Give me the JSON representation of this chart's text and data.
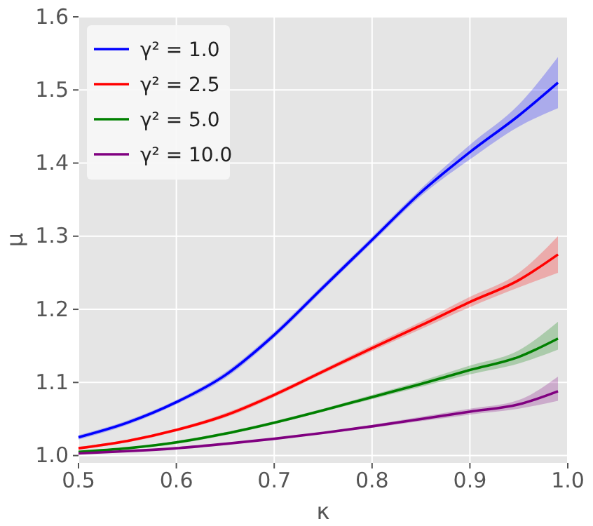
{
  "chart_data": {
    "type": "line",
    "xlabel": "κ",
    "ylabel": "μ",
    "xlim": [
      0.5,
      1.0
    ],
    "ylim": [
      0.99,
      1.6
    ],
    "xticks": [
      0.5,
      0.6,
      0.7,
      0.8,
      0.9,
      {
        "value": 1.0,
        "label": "1.0"
      }
    ],
    "yticks": [
      {
        "value": 1.0,
        "label": "1.0"
      },
      1.1,
      1.2,
      1.3,
      1.4,
      1.5,
      1.6
    ],
    "grid": true,
    "legend": "top left",
    "line_style": "solid",
    "x": [
      0.5,
      0.55,
      0.6,
      0.65,
      0.7,
      0.75,
      0.8,
      0.85,
      0.9,
      0.95,
      0.99
    ],
    "series": [
      {
        "name": "γ² = 1.0",
        "color": "#0000ff",
        "values": [
          1.025,
          1.045,
          1.073,
          1.11,
          1.165,
          1.23,
          1.295,
          1.36,
          1.415,
          1.465,
          1.51
        ],
        "lower": [
          1.022,
          1.042,
          1.07,
          1.106,
          1.161,
          1.226,
          1.291,
          1.355,
          1.405,
          1.45,
          1.475
        ],
        "upper": [
          1.028,
          1.048,
          1.076,
          1.114,
          1.169,
          1.234,
          1.299,
          1.365,
          1.425,
          1.48,
          1.545
        ]
      },
      {
        "name": "γ² = 2.5",
        "color": "#ff0000",
        "values": [
          1.01,
          1.02,
          1.035,
          1.055,
          1.083,
          1.115,
          1.147,
          1.178,
          1.21,
          1.24,
          1.275
        ],
        "lower": [
          1.008,
          1.018,
          1.033,
          1.052,
          1.08,
          1.112,
          1.143,
          1.173,
          1.203,
          1.23,
          1.25
        ],
        "upper": [
          1.012,
          1.022,
          1.037,
          1.058,
          1.086,
          1.118,
          1.151,
          1.183,
          1.217,
          1.25,
          1.3
        ]
      },
      {
        "name": "γ² = 5.0",
        "color": "#008000",
        "values": [
          1.005,
          1.01,
          1.018,
          1.03,
          1.045,
          1.062,
          1.08,
          1.098,
          1.117,
          1.135,
          1.16
        ],
        "lower": [
          1.004,
          1.009,
          1.016,
          1.028,
          1.043,
          1.06,
          1.077,
          1.094,
          1.111,
          1.126,
          1.145
        ],
        "upper": [
          1.006,
          1.011,
          1.02,
          1.032,
          1.047,
          1.064,
          1.083,
          1.102,
          1.123,
          1.144,
          1.183
        ]
      },
      {
        "name": "γ² = 10.0",
        "color": "#800080",
        "values": [
          1.003,
          1.006,
          1.01,
          1.016,
          1.023,
          1.031,
          1.04,
          1.05,
          1.06,
          1.07,
          1.088
        ],
        "lower": [
          1.002,
          1.005,
          1.009,
          1.015,
          1.022,
          1.03,
          1.038,
          1.047,
          1.056,
          1.064,
          1.075
        ],
        "upper": [
          1.004,
          1.007,
          1.011,
          1.017,
          1.024,
          1.032,
          1.042,
          1.053,
          1.064,
          1.076,
          1.108
        ]
      }
    ]
  }
}
